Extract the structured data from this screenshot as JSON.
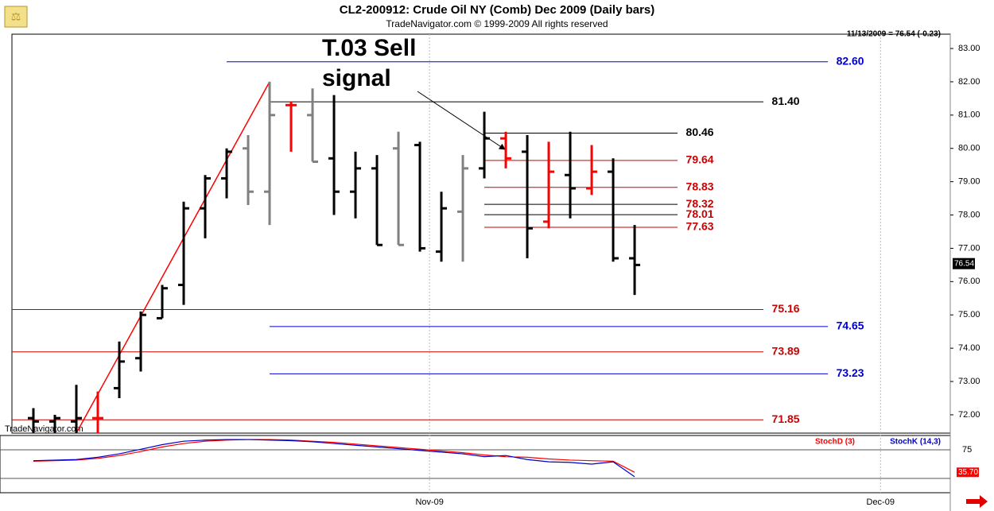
{
  "chart_data": {
    "type": "ohlc",
    "title": "CL2-200912:  Crude Oil NY (Comb) Dec 2009  (Daily bars)",
    "subtitle": "TradeNavigator.com © 1999-2009 All rights reserved",
    "status": "11/13/2009 = 76.54 (-0.23)",
    "watermark": "TradeNavigator.com",
    "annotation": "T.03 Sell signal",
    "last_price": 76.54,
    "xlim": [
      -1,
      42.7
    ],
    "xticks": [
      {
        "value": 18.45,
        "label": "Nov-09"
      },
      {
        "value": 39.45,
        "label": "Dec-09"
      }
    ],
    "ylim": [
      71.45,
      83.43
    ],
    "yticks": [
      {
        "value": 72,
        "label": "72.00"
      },
      {
        "value": 73,
        "label": "73.00"
      },
      {
        "value": 74,
        "label": "74.00"
      },
      {
        "value": 75,
        "label": "75.00"
      },
      {
        "value": 76,
        "label": "76.00"
      },
      {
        "value": 77,
        "label": "77.00"
      },
      {
        "value": 78,
        "label": "78.00"
      },
      {
        "value": 79,
        "label": "79.00"
      },
      {
        "value": 80,
        "label": "80.00"
      },
      {
        "value": 81,
        "label": "81.00"
      },
      {
        "value": 82,
        "label": "82.00"
      },
      {
        "value": 83,
        "label": "83.00"
      }
    ],
    "open": [
      71.9,
      71.8,
      71.8,
      71.9,
      72.8,
      73.7,
      74.9,
      75.9,
      78.2,
      79.1,
      80.0,
      78.7,
      81.3,
      81.0,
      79.7,
      78.7,
      79.4,
      80.0,
      80.1,
      76.9,
      78.1,
      79.4,
      80.3,
      79.9,
      77.8,
      79.2,
      78.8,
      79.3,
      76.7
    ],
    "high": [
      72.2,
      72.0,
      72.9,
      72.7,
      74.2,
      75.1,
      75.9,
      78.4,
      79.2,
      80.0,
      80.4,
      82.0,
      81.4,
      81.8,
      81.6,
      79.9,
      79.8,
      80.5,
      80.2,
      78.7,
      79.8,
      81.1,
      80.5,
      80.4,
      80.2,
      80.5,
      80.1,
      79.7,
      77.7
    ],
    "low": [
      71.45,
      71.45,
      71.45,
      71.45,
      72.5,
      73.3,
      74.9,
      75.3,
      77.3,
      78.5,
      78.3,
      77.7,
      79.9,
      79.6,
      78.0,
      77.9,
      77.1,
      77.1,
      76.9,
      76.6,
      76.6,
      79.1,
      79.4,
      76.7,
      77.6,
      77.9,
      78.6,
      76.6,
      75.6
    ],
    "close": [
      71.8,
      71.9,
      71.9,
      71.9,
      73.6,
      75.0,
      75.8,
      78.2,
      79.1,
      79.9,
      78.7,
      81.0,
      81.3,
      79.6,
      78.7,
      79.4,
      77.1,
      77.1,
      77.0,
      78.2,
      79.4,
      80.3,
      79.7,
      77.6,
      79.3,
      78.8,
      79.3,
      76.7,
      76.5
    ],
    "bar_colors": [
      "#000000",
      "#000000",
      "#000000",
      "#ff0000",
      "#000000",
      "#000000",
      "#000000",
      "#000000",
      "#000000",
      "#000000",
      "#808080",
      "#808080",
      "#ff0000",
      "#808080",
      "#000000",
      "#000000",
      "#000000",
      "#808080",
      "#000000",
      "#000000",
      "#808080",
      "#000000",
      "#ff0000",
      "#000000",
      "#ff0000",
      "#000000",
      "#ff0000",
      "#000000",
      "#000000"
    ],
    "trendline": {
      "x": [
        2,
        11
      ],
      "y": [
        71.45,
        82.0
      ],
      "color": "#ff0000"
    },
    "levels": [
      {
        "value": 82.6,
        "label": "82.60",
        "color": "#0000cc",
        "label_color": "#0000cc",
        "x": [
          9,
          37
        ]
      },
      {
        "value": 81.4,
        "label": "81.40",
        "color": "#000000",
        "label_color": "#000000",
        "x": [
          11,
          34
        ]
      },
      {
        "value": 80.46,
        "label": "80.46",
        "color": "#000000",
        "label_color": "#000000",
        "x": [
          21,
          30
        ]
      },
      {
        "value": 79.64,
        "label": "79.64",
        "color": "#cc0000",
        "label_color": "#cc0000",
        "x": [
          21,
          30
        ]
      },
      {
        "value": 78.83,
        "label": "78.83",
        "color": "#cc0000",
        "label_color": "#cc0000",
        "x": [
          21,
          30
        ]
      },
      {
        "value": 78.32,
        "label": "78.32",
        "color": "#000000",
        "label_color": "#cc0000",
        "x": [
          21,
          30
        ]
      },
      {
        "value": 78.01,
        "label": "78.01",
        "color": "#000000",
        "label_color": "#cc0000",
        "x": [
          21,
          30
        ]
      },
      {
        "value": 77.63,
        "label": "77.63",
        "color": "#cc0000",
        "label_color": "#cc0000",
        "x": [
          21,
          30
        ]
      },
      {
        "value": 75.16,
        "label": "75.16",
        "color": "#cc0000",
        "label_color": "#cc0000",
        "x": [
          -1,
          34
        ]
      },
      {
        "value": 74.65,
        "label": "74.65",
        "color": "#0000cc",
        "label_color": "#0000cc",
        "x": [
          11,
          37
        ]
      },
      {
        "value": 73.89,
        "label": "73.89",
        "color": "#cc0000",
        "label_color": "#cc0000",
        "x": [
          -1,
          34
        ]
      },
      {
        "value": 73.23,
        "label": "73.23",
        "color": "#0000cc",
        "label_color": "#0000cc",
        "x": [
          11,
          37
        ]
      },
      {
        "value": 71.85,
        "label": "71.85",
        "color": "#cc0000",
        "label_color": "#cc0000",
        "x": [
          -1,
          34
        ]
      }
    ],
    "stoch": {
      "ylim": [
        0,
        100
      ],
      "yticks": [
        75
      ],
      "guides": [
        25
      ],
      "series": [
        {
          "name": "StochD (3)",
          "color": "#ff0000",
          "values": [
            55,
            56,
            57,
            60,
            65,
            72,
            80,
            86,
            90,
            92,
            93,
            93,
            92,
            90,
            88,
            85,
            82,
            79,
            76,
            73,
            70,
            66,
            63,
            62,
            59,
            57,
            56,
            55,
            35.7
          ],
          "value_labels": [
            null,
            null,
            null,
            null,
            null,
            null,
            null,
            null,
            null,
            null,
            null,
            null,
            null,
            null,
            null,
            null,
            null,
            null,
            null,
            null,
            null,
            null,
            null,
            null,
            null,
            null,
            null,
            null,
            "35.70"
          ]
        },
        {
          "name": "StochK (14,3)",
          "color": "#0000cc",
          "values": [
            56,
            57,
            58,
            62,
            68,
            76,
            84,
            90,
            92,
            93,
            93,
            92,
            91,
            89,
            86,
            83,
            80,
            77,
            74,
            71,
            68,
            63,
            65,
            58,
            54,
            53,
            50,
            54,
            28
          ]
        }
      ]
    }
  }
}
